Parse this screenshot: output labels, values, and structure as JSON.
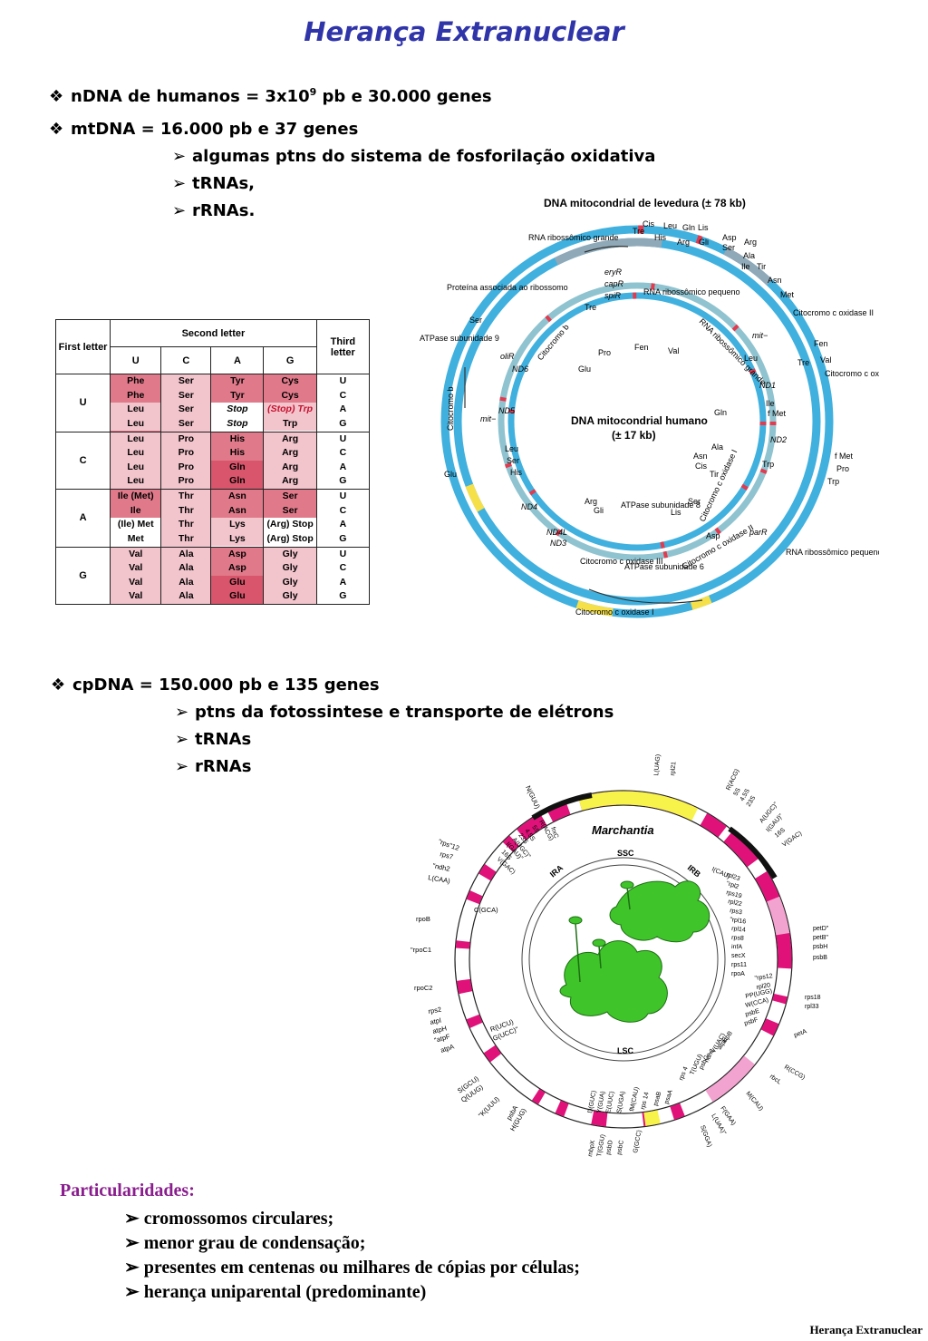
{
  "title": "Herança Extranuclear",
  "bullets_top": [
    {
      "marker": "❖",
      "pre": "nDNA de humanos = 3x10",
      "sup": "9",
      "post": " pb e 30.000 genes"
    },
    {
      "marker": "❖",
      "pre": "mtDNA = 16.000 pb e 37 genes",
      "sup": "",
      "post": ""
    }
  ],
  "mt_subs": [
    "algumas ptns do sistema de fosforilação oxidativa",
    "tRNAs,",
    "rRNAs."
  ],
  "cp_bullet": {
    "marker": "❖",
    "text": "cpDNA = 150.000 pb e 135 genes"
  },
  "cp_subs": [
    "ptns da fotossintese e transporte de elétrons",
    "tRNAs",
    "rRNAs"
  ],
  "particularidades": {
    "heading": "Particularidades:",
    "items": [
      "cromossomos circulares;",
      "menor grau de condensação;",
      "presentes em centenas ou milhares de cópias por células;",
      "herança uniparental (predominante)"
    ]
  },
  "footer": "Herança Extranuclear",
  "codon_table": {
    "first_letter": "First letter",
    "second_letter": "Second letter",
    "third_letter": "Third letter",
    "second_bases": [
      "U",
      "C",
      "A",
      "G"
    ],
    "first_bases": [
      "U",
      "C",
      "A",
      "G"
    ],
    "third_bases": [
      "U",
      "C",
      "A",
      "G"
    ],
    "rows": [
      [
        [
          "Phe",
          "Phe",
          "Leu",
          "Leu"
        ],
        [
          "Ser",
          "Ser",
          "Ser",
          "Ser"
        ],
        [
          "Tyr",
          "Tyr",
          "Stop",
          "Stop"
        ],
        [
          "Cys",
          "Cys",
          "(Stop) Trp",
          "Trp"
        ]
      ],
      [
        [
          "Leu",
          "Leu",
          "Leu",
          "Leu"
        ],
        [
          "Pro",
          "Pro",
          "Pro",
          "Pro"
        ],
        [
          "His",
          "His",
          "Gln",
          "Gln"
        ],
        [
          "Arg",
          "Arg",
          "Arg",
          "Arg"
        ]
      ],
      [
        [
          "Ile (Met)",
          "Ile",
          "(Ile) Met",
          "Met"
        ],
        [
          "Thr",
          "Thr",
          "Thr",
          "Thr"
        ],
        [
          "Asn",
          "Asn",
          "Lys",
          "Lys"
        ],
        [
          "Ser",
          "Ser",
          "(Arg) Stop",
          "(Arg) Stop"
        ]
      ],
      [
        [
          "Val",
          "Val",
          "Val",
          "Val"
        ],
        [
          "Ala",
          "Ala",
          "Ala",
          "Ala"
        ],
        [
          "Asp",
          "Asp",
          "Glu",
          "Glu"
        ],
        [
          "Gly",
          "Gly",
          "Gly",
          "Gly"
        ]
      ]
    ]
  },
  "mito_figure": {
    "yeast_title": "DNA mitocondrial de levedura (± 78 kb)",
    "human_title": "DNA mitocondrial humano",
    "human_size": "(± 17 kb)",
    "labels": {
      "rna_grande": "RNA ribossômico grande",
      "trnas_top": [
        "Cis",
        "Leu",
        "Gln",
        "Lis",
        "Tre",
        "His",
        "Arg",
        "Gli",
        "Asp",
        "Ser",
        "Arg",
        "Ala",
        "Ile",
        "Tir",
        "Asn",
        "Met"
      ],
      "proteina": "Proteína associada ao ribossomo",
      "ery": "eryR",
      "cap": "capR",
      "spi": "spiR",
      "rna_pequeno": "RNA ribossômico pequeno",
      "rna_grande_inner": "RNA ribossômico grande",
      "citocromo_c_ox2": "Citocromo c oxidase II",
      "atpase9": "ATPase subunidade 9",
      "ser": "Ser",
      "mit": "mit−",
      "fen": "Fen",
      "tre": "Tre",
      "val": "Val",
      "citocromo_c_ox3": "Citocromo c oxidase III",
      "citocromo_b": "Citocromo b",
      "citocromo_b_inner": "Citocromo b",
      "oli": "oliR",
      "nd6": "ND6",
      "nd5": "ND5",
      "nd4": "ND4",
      "nd4l": "ND4L",
      "nd3": "ND3",
      "nd2": "ND2",
      "nd1": "ND1",
      "glu": "Glu",
      "leu": "Leu",
      "his": "His",
      "ser2": "Ser",
      "fmet": "f Met",
      "pro": "Pro",
      "trp": "Trp",
      "atpase8": "ATPase subunidade 8",
      "atpase6": "ATPase subunidade 6",
      "cox3": "Citocromo c oxidase III",
      "cox2": "Citocromo c oxidase II",
      "cox1": "Citocromo c oxidase I",
      "cox1_inner": "Citocromo c oxidase I",
      "par": "parR",
      "rna_pequeno_outer": "RNA ribossômico pequeno",
      "inner_trnas": [
        "Tre",
        "Pro",
        "Fen",
        "Val",
        "Glu",
        "Leu",
        "Ile",
        "f Met",
        "Gln",
        "Ala",
        "Asn",
        "Cis",
        "Tir",
        "Trp",
        "Arg",
        "Gli",
        "Lis",
        "Ser",
        "Asp"
      ]
    }
  },
  "cp_figure": {
    "species": "Marchantia",
    "ssc": "SSC",
    "lsc": "LSC",
    "ira": "IRA",
    "irb": "IRB",
    "genes_left": [
      "N(GUU)",
      "\"rps\"12",
      "rps7",
      "\"ndh2",
      "L(CAA)",
      "C(GCA)",
      "rpoB",
      "\"rpoC1",
      "rpoC2",
      "rps2",
      "atpI",
      "atpH",
      "\"atpF",
      "atpA",
      "R(UCU)",
      "G(UCC)\"",
      "S(GCU)",
      "Q(UUG)",
      "\"K(UUU)",
      "psbA",
      "H(GUG)"
    ],
    "genes_inner_left": [
      "frxC",
      "R(ACG)",
      "5S",
      "4.5S",
      "23S",
      "A(UGC)\"",
      "I(GAU)\"",
      "16S",
      "V(GAC)"
    ],
    "genes_top": [
      "L(UAG)",
      "rpl21",
      "R(ACG)",
      "5S",
      "4.5S",
      "23S",
      "A(UGC)\"",
      "I(GAU)\"",
      "16S",
      "V(GAC)"
    ],
    "genes_right": [
      "I(CAU)",
      "rpl23",
      "\"rpl2",
      "rps19",
      "rpl22",
      "rps3",
      "\"rpl16",
      "rpl14",
      "rps8",
      "infA",
      "secX",
      "rps11",
      "rpoA",
      "petD\"",
      "petB\"",
      "psbH",
      "psbB",
      "\"rps12",
      "rpl20",
      "PP(UGG)",
      "W(CCA)",
      "psbE",
      "psbF",
      "rps18",
      "rpl33",
      "petA",
      "atpB",
      "atpE",
      "\"V(UAC)",
      "ndh3",
      "psbG",
      "T(UGU)",
      "rps 4",
      "R(CCG)",
      "rbcL",
      "M(CAU)",
      "F(GAA)",
      "L(UAA)\"",
      "S(GGA)"
    ],
    "genes_bottom": [
      "D(GUC)",
      "Y(GUA)",
      "E(UUC)",
      "S(UGA)",
      "fM(CAU)",
      "rps 14",
      "psaB",
      "psaA",
      "mbpX",
      "T(GGU)",
      "psbD",
      "psbC",
      "G(GCC)"
    ]
  }
}
